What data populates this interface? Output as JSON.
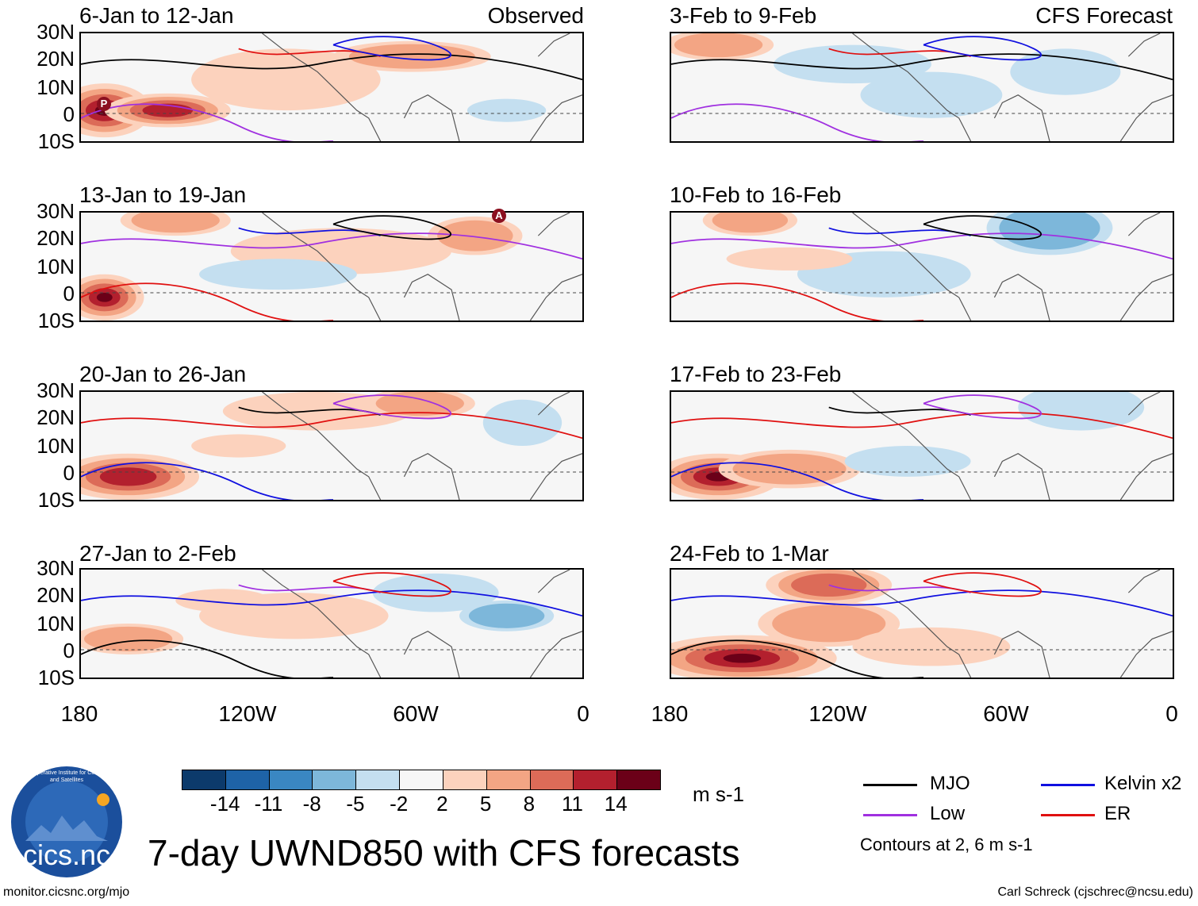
{
  "tags": {
    "observed": "Observed",
    "forecast": "CFS Forecast"
  },
  "panels_left": [
    {
      "title": "6-Jan to 12-Jan"
    },
    {
      "title": "13-Jan to 19-Jan"
    },
    {
      "title": "20-Jan to 26-Jan"
    },
    {
      "title": "27-Jan to 2-Feb"
    }
  ],
  "panels_right": [
    {
      "title": "3-Feb to 9-Feb"
    },
    {
      "title": "10-Feb to 16-Feb"
    },
    {
      "title": "17-Feb to 23-Feb"
    },
    {
      "title": "24-Feb to 1-Mar"
    }
  ],
  "lat_labels": [
    "30N",
    "20N",
    "10N",
    "0",
    "10S"
  ],
  "lon_labels": [
    "180",
    "120W",
    "60W",
    "0"
  ],
  "markers": {
    "p": "P",
    "a": "A"
  },
  "colorbar": {
    "labels": [
      "-14",
      "-11",
      "-8",
      "-5",
      "-2",
      "2",
      "5",
      "8",
      "11",
      "14"
    ],
    "colors": [
      "#0c3a6b",
      "#1e63a7",
      "#3a87c2",
      "#7db7da",
      "#c4dff0",
      "#f7f7f7",
      "#fcd2bd",
      "#f3a584",
      "#dc6b58",
      "#b3202e",
      "#6b0018"
    ],
    "units": "m s-1"
  },
  "legend": {
    "mjo": "MJO",
    "kelvin": "Kelvin x2",
    "low": "Low",
    "er": "ER",
    "note": "Contours at 2, 6 m s-1",
    "colors": {
      "mjo": "#000000",
      "kelvin": "#1010e0",
      "low": "#a030e0",
      "er": "#e01010"
    }
  },
  "logo": {
    "text": "cics.nc",
    "ring_text": "Cooperative Institute for Climate and Satellites"
  },
  "main_title": "7-day UWND850 with CFS forecasts",
  "footer": {
    "left": "monitor.cicsnc.org/mjo",
    "right": "Carl Schreck (cjschrec@ncsu.edu)"
  }
}
